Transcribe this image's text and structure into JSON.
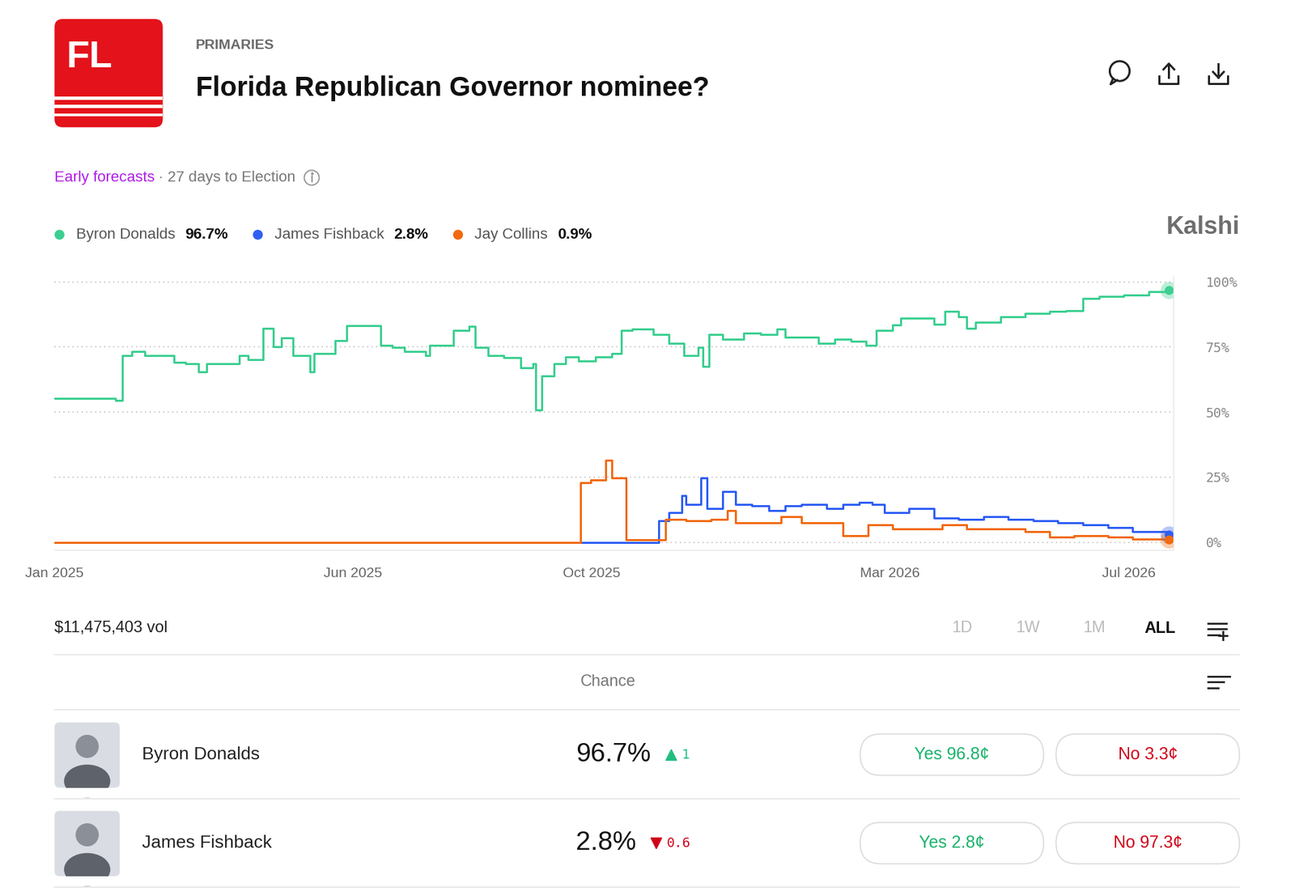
{
  "header": {
    "logo": "FL",
    "category": "PRIMARIES",
    "title": "Florida Republican Governor nominee?",
    "forecast_label": "Early forecasts",
    "countdown": "· 27 days to Election",
    "brand": "Kalshi"
  },
  "chart_data": {
    "type": "line",
    "line_style": "steps",
    "grid": true,
    "xlim": [
      0,
      18.75
    ],
    "xticks": [
      {
        "value": 0,
        "label": "Jan 2025"
      },
      {
        "value": 5,
        "label": "Jun 2025"
      },
      {
        "value": 9,
        "label": "Oct 2025"
      },
      {
        "value": 14,
        "label": "Mar 2026"
      },
      {
        "value": 18,
        "label": "Jul 2026"
      }
    ],
    "ylim": [
      -3,
      102
    ],
    "yticks": [
      {
        "value": 0,
        "label": "0%"
      },
      {
        "value": 25,
        "label": "25%"
      },
      {
        "value": 50,
        "label": "50%"
      },
      {
        "value": 75,
        "label": "75%"
      },
      {
        "value": 100,
        "label": "100%"
      }
    ],
    "series": [
      {
        "name": "Byron Donalds",
        "chance": "96.7%",
        "color": "#3ccf91",
        "x": [
          0,
          1.02,
          1.14,
          1.3,
          1.51,
          1.79,
          2.0,
          2.2,
          2.41,
          2.55,
          2.96,
          3.1,
          3.24,
          3.49,
          3.66,
          3.8,
          4.0,
          4.28,
          4.35,
          4.7,
          4.9,
          5.32,
          5.46,
          5.66,
          5.87,
          6.22,
          6.29,
          6.68,
          6.95,
          7.05,
          7.26,
          7.53,
          7.81,
          8.02,
          8.06,
          8.16,
          8.37,
          8.57,
          8.78,
          9.06,
          9.34,
          9.5,
          9.68,
          10.03,
          10.3,
          10.55,
          10.79,
          10.86,
          10.97,
          11.2,
          11.55,
          11.83,
          12.11,
          12.24,
          12.66,
          12.8,
          13.07,
          13.35,
          13.6,
          13.77,
          14.04,
          14.18,
          14.46,
          14.74,
          14.92,
          15.15,
          15.29,
          15.43,
          15.85,
          16.26,
          16.68,
          16.95,
          17.23,
          17.51,
          17.92,
          18.34,
          18.68
        ],
        "values": [
          55.2,
          54.6,
          71.7,
          73.3,
          71.7,
          71.7,
          69.2,
          68.6,
          65.4,
          68.6,
          68.6,
          71.7,
          70.2,
          82.2,
          75.2,
          78.4,
          71.7,
          65.4,
          72.4,
          77.5,
          83.2,
          83.2,
          75.6,
          74.9,
          73.3,
          71.7,
          75.6,
          81.3,
          82.9,
          74.9,
          71.7,
          70.8,
          67.0,
          68.6,
          50.8,
          63.8,
          68.6,
          71.1,
          69.5,
          71.1,
          72.4,
          81.3,
          81.9,
          79.7,
          76.5,
          71.7,
          74.9,
          67.6,
          79.7,
          78.1,
          80.3,
          79.7,
          81.9,
          78.7,
          78.7,
          76.5,
          78.1,
          77.1,
          75.6,
          81.3,
          83.5,
          86.0,
          86.0,
          83.8,
          88.6,
          86.7,
          82.2,
          84.4,
          86.7,
          88.0,
          88.6,
          88.9,
          93.7,
          94.3,
          94.9,
          96.2,
          96.7
        ]
      },
      {
        "name": "James Fishback",
        "chance": "2.8%",
        "color": "#2f5ff5",
        "x": [
          0,
          10.1,
          10.12,
          10.3,
          10.51,
          10.58,
          10.83,
          10.93,
          11.2,
          11.41,
          11.69,
          11.97,
          12.24,
          12.52,
          12.94,
          13.21,
          13.49,
          13.7,
          13.91,
          14.32,
          14.74,
          15.15,
          15.57,
          15.98,
          16.4,
          16.81,
          17.23,
          17.65,
          18.06,
          18.68
        ],
        "values": [
          0,
          0,
          8.3,
          11.4,
          17.8,
          14.6,
          24.8,
          13.0,
          19.4,
          14.6,
          14.0,
          12.1,
          14.0,
          14.6,
          13.0,
          14.6,
          15.2,
          14.6,
          11.4,
          13.0,
          9.2,
          8.9,
          9.8,
          8.9,
          8.3,
          7.6,
          6.7,
          5.7,
          4.1,
          2.8
        ]
      },
      {
        "name": "Jay Collins",
        "chance": "0.9%",
        "color": "#f26a10",
        "x": [
          0,
          8.78,
          8.81,
          8.99,
          9.24,
          9.34,
          9.56,
          9.58,
          10.1,
          10.24,
          10.58,
          11.0,
          11.27,
          11.41,
          11.83,
          12.17,
          12.52,
          12.94,
          13.21,
          13.63,
          14.04,
          14.46,
          14.88,
          15.29,
          15.71,
          16.26,
          16.68,
          17.09,
          17.65,
          18.06,
          18.68
        ],
        "values": [
          0,
          0,
          23,
          24,
          31.4,
          24.8,
          24.8,
          1,
          1,
          8.9,
          8.3,
          8.9,
          12.1,
          7.6,
          7.6,
          9.8,
          7.6,
          7.6,
          2.5,
          6.7,
          5.1,
          5.1,
          6.7,
          5.1,
          5.1,
          4.1,
          1.9,
          2.5,
          1.9,
          1.3,
          0.9
        ]
      }
    ]
  },
  "controls": {
    "volume": "$11,475,403 vol",
    "ranges": [
      "1D",
      "1W",
      "1M",
      "ALL"
    ],
    "active_range": "ALL"
  },
  "table": {
    "header": "Chance",
    "rows": [
      {
        "name": "Byron Donalds",
        "chance": "96.7%",
        "change": "1",
        "direction": "up",
        "yes": "Yes 96.8¢",
        "no": "No 3.3¢"
      },
      {
        "name": "James Fishback",
        "chance": "2.8%",
        "change": "0.6",
        "direction": "down",
        "yes": "Yes 2.8¢",
        "no": "No 97.3¢"
      }
    ]
  }
}
